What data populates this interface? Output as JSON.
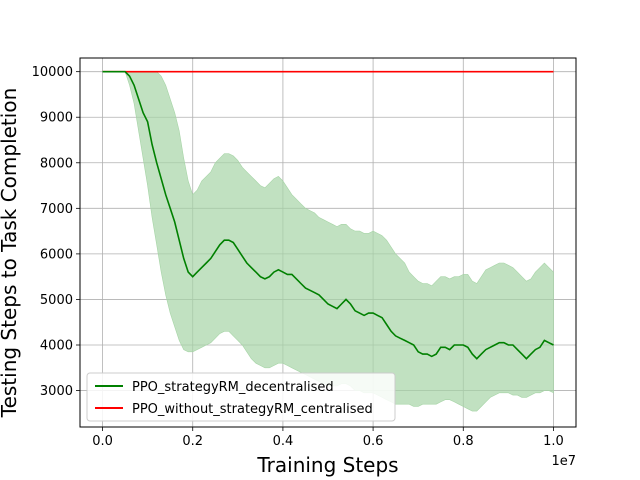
{
  "chart_data": {
    "type": "line",
    "xlabel": "Training Steps",
    "ylabel": "Testing Steps to Task Completion",
    "x_offset_label": "1e7",
    "xlim": [
      -0.05,
      1.05
    ],
    "ylim": [
      2200,
      10300
    ],
    "x_ticks": [
      0.0,
      0.2,
      0.4,
      0.6,
      0.8,
      1.0
    ],
    "x_tick_labels": [
      "0.0",
      "0.2",
      "0.4",
      "0.6",
      "0.8",
      "1.0"
    ],
    "y_ticks": [
      3000,
      4000,
      5000,
      6000,
      7000,
      8000,
      9000,
      10000
    ],
    "y_tick_labels": [
      "3000",
      "4000",
      "5000",
      "6000",
      "7000",
      "8000",
      "9000",
      "10000"
    ],
    "grid": true,
    "legend_position": "lower-left",
    "colors": {
      "decentralised": "#008000",
      "centralised": "#ff0000",
      "band": "#a6d4a6"
    },
    "series": [
      {
        "name": "PPO_strategyRM_decentralised",
        "x": [
          0.0,
          0.05,
          0.06,
          0.07,
          0.08,
          0.09,
          0.1,
          0.11,
          0.12,
          0.13,
          0.14,
          0.15,
          0.16,
          0.17,
          0.18,
          0.19,
          0.2,
          0.21,
          0.22,
          0.23,
          0.24,
          0.25,
          0.26,
          0.27,
          0.28,
          0.29,
          0.3,
          0.31,
          0.32,
          0.33,
          0.34,
          0.35,
          0.36,
          0.37,
          0.38,
          0.39,
          0.4,
          0.41,
          0.42,
          0.43,
          0.44,
          0.45,
          0.46,
          0.47,
          0.48,
          0.49,
          0.5,
          0.51,
          0.52,
          0.53,
          0.54,
          0.55,
          0.56,
          0.57,
          0.58,
          0.59,
          0.6,
          0.61,
          0.62,
          0.63,
          0.64,
          0.65,
          0.66,
          0.67,
          0.68,
          0.69,
          0.7,
          0.71,
          0.72,
          0.73,
          0.74,
          0.75,
          0.76,
          0.77,
          0.78,
          0.79,
          0.8,
          0.81,
          0.82,
          0.83,
          0.84,
          0.85,
          0.86,
          0.87,
          0.88,
          0.89,
          0.9,
          0.91,
          0.92,
          0.93,
          0.94,
          0.95,
          0.96,
          0.97,
          0.98,
          0.99,
          1.0
        ],
        "y": [
          10000,
          10000,
          9900,
          9700,
          9400,
          9100,
          8900,
          8400,
          8000,
          7650,
          7300,
          7000,
          6700,
          6300,
          5900,
          5600,
          5500,
          5600,
          5700,
          5800,
          5900,
          6050,
          6200,
          6300,
          6300,
          6250,
          6100,
          5950,
          5800,
          5700,
          5600,
          5500,
          5450,
          5500,
          5600,
          5650,
          5600,
          5550,
          5550,
          5450,
          5350,
          5250,
          5200,
          5150,
          5100,
          5000,
          4900,
          4850,
          4800,
          4900,
          5000,
          4900,
          4750,
          4700,
          4650,
          4700,
          4700,
          4650,
          4600,
          4450,
          4300,
          4200,
          4150,
          4100,
          4050,
          4000,
          3850,
          3800,
          3800,
          3750,
          3800,
          3950,
          3950,
          3900,
          4000,
          4000,
          4000,
          3950,
          3800,
          3700,
          3800,
          3900,
          3950,
          4000,
          4050,
          4050,
          4000,
          4000,
          3900,
          3800,
          3700,
          3800,
          3900,
          3950,
          4100,
          4050,
          4000
        ],
        "lower": [
          10000,
          10000,
          9700,
          9300,
          8700,
          8100,
          7500,
          6800,
          6200,
          5600,
          5100,
          4700,
          4400,
          4100,
          3900,
          3850,
          3850,
          3900,
          3950,
          4000,
          4050,
          4150,
          4250,
          4300,
          4300,
          4200,
          4100,
          4000,
          3850,
          3700,
          3600,
          3550,
          3500,
          3500,
          3550,
          3600,
          3600,
          3550,
          3500,
          3450,
          3400,
          3350,
          3300,
          3250,
          3200,
          3150,
          3100,
          3100,
          3100,
          3150,
          3150,
          3100,
          3000,
          3000,
          2950,
          2950,
          2950,
          2900,
          2850,
          2800,
          2750,
          2700,
          2700,
          2700,
          2700,
          2650,
          2650,
          2700,
          2700,
          2700,
          2700,
          2750,
          2800,
          2800,
          2750,
          2700,
          2650,
          2600,
          2550,
          2550,
          2650,
          2750,
          2850,
          2900,
          2950,
          2950,
          2950,
          2900,
          2900,
          2850,
          2850,
          2900,
          2950,
          2950,
          3000,
          3000,
          2950
        ],
        "upper": [
          10000,
          10000,
          10000,
          10000,
          10000,
          10000,
          10000,
          10000,
          10000,
          9900,
          9700,
          9400,
          9100,
          8700,
          8100,
          7600,
          7300,
          7400,
          7600,
          7700,
          7800,
          8000,
          8100,
          8200,
          8200,
          8150,
          8050,
          7900,
          7800,
          7700,
          7600,
          7500,
          7450,
          7550,
          7650,
          7700,
          7600,
          7450,
          7300,
          7200,
          7100,
          7000,
          6950,
          6900,
          6800,
          6750,
          6700,
          6650,
          6600,
          6650,
          6650,
          6550,
          6500,
          6500,
          6450,
          6450,
          6500,
          6450,
          6400,
          6300,
          6150,
          6000,
          5900,
          5800,
          5600,
          5500,
          5400,
          5350,
          5350,
          5300,
          5400,
          5500,
          5500,
          5450,
          5500,
          5500,
          5550,
          5550,
          5400,
          5350,
          5500,
          5650,
          5700,
          5750,
          5800,
          5800,
          5750,
          5700,
          5600,
          5500,
          5400,
          5450,
          5600,
          5700,
          5800,
          5700,
          5600
        ]
      },
      {
        "name": "PPO_without_strategyRM_centralised",
        "x": [
          0.0,
          1.0
        ],
        "y": [
          10000,
          10000
        ]
      }
    ]
  }
}
